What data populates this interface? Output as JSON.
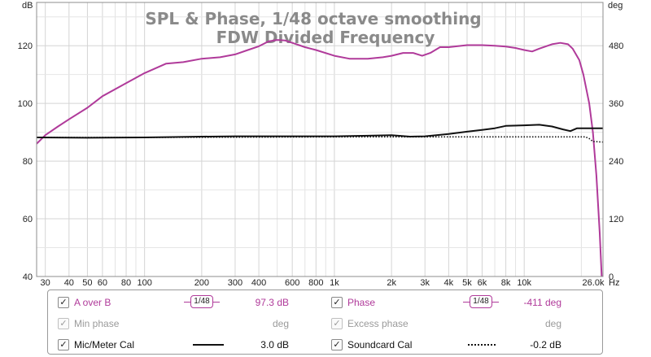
{
  "chart_data": {
    "type": "line",
    "title": "SPL & Phase, 1/48 octave smoothing",
    "subtitle": "FDW Divided Frequency",
    "ylabel_left": "dB",
    "ylabel_right": "deg",
    "xunit": "Hz",
    "xscale": "log",
    "xlim": [
      27,
      26000
    ],
    "ylim_left": [
      40,
      135
    ],
    "ylim_right": [
      0,
      570
    ],
    "y_ticks_left": [
      "40",
      "60",
      "80",
      "100",
      "120"
    ],
    "y_ticks_right": [
      "0",
      "120",
      "240",
      "360",
      "480"
    ],
    "x_ticks": [
      {
        "v": 30,
        "label": "30"
      },
      {
        "v": 40,
        "label": "40"
      },
      {
        "v": 50,
        "label": "50"
      },
      {
        "v": 60,
        "label": "60"
      },
      {
        "v": 80,
        "label": "80"
      },
      {
        "v": 100,
        "label": "100"
      },
      {
        "v": 200,
        "label": "200"
      },
      {
        "v": 300,
        "label": "300"
      },
      {
        "v": 400,
        "label": "400"
      },
      {
        "v": 600,
        "label": "600"
      },
      {
        "v": 800,
        "label": "800"
      },
      {
        "v": 1000,
        "label": "1k"
      },
      {
        "v": 2000,
        "label": "2k"
      },
      {
        "v": 3000,
        "label": "3k"
      },
      {
        "v": 4000,
        "label": "4k"
      },
      {
        "v": 5000,
        "label": "5k"
      },
      {
        "v": 6000,
        "label": "6k"
      },
      {
        "v": 8000,
        "label": "8k"
      },
      {
        "v": 10000,
        "label": "10k"
      },
      {
        "v": 26000,
        "label": "26.0k"
      }
    ],
    "grid": true,
    "series": [
      {
        "name": "A over B",
        "axis": "left",
        "color": "#b03a9a",
        "style": "solid",
        "points": [
          [
            27,
            86
          ],
          [
            30,
            89
          ],
          [
            35,
            92
          ],
          [
            40,
            94.5
          ],
          [
            50,
            98.5
          ],
          [
            60,
            102.5
          ],
          [
            80,
            107
          ],
          [
            100,
            110.5
          ],
          [
            130,
            113.8
          ],
          [
            160,
            114.3
          ],
          [
            200,
            115.5
          ],
          [
            250,
            116
          ],
          [
            300,
            117
          ],
          [
            350,
            118.5
          ],
          [
            400,
            119.8
          ],
          [
            450,
            121.5
          ],
          [
            500,
            122
          ],
          [
            550,
            121.8
          ],
          [
            600,
            121
          ],
          [
            700,
            119.5
          ],
          [
            800,
            118.5
          ],
          [
            1000,
            116.5
          ],
          [
            1200,
            115.5
          ],
          [
            1500,
            115.5
          ],
          [
            1800,
            116
          ],
          [
            2000,
            116.5
          ],
          [
            2300,
            117.5
          ],
          [
            2600,
            117.5
          ],
          [
            2900,
            116.5
          ],
          [
            3200,
            117.5
          ],
          [
            3600,
            119.5
          ],
          [
            4000,
            119.5
          ],
          [
            5000,
            120.2
          ],
          [
            6000,
            120.2
          ],
          [
            7000,
            120
          ],
          [
            8000,
            119.7
          ],
          [
            9000,
            119.2
          ],
          [
            10000,
            118.5
          ],
          [
            11000,
            118
          ],
          [
            12000,
            119
          ],
          [
            14000,
            120.5
          ],
          [
            15500,
            121
          ],
          [
            17000,
            120.5
          ],
          [
            18000,
            119
          ],
          [
            19500,
            115
          ],
          [
            20500,
            110
          ],
          [
            22000,
            100
          ],
          [
            23000,
            90
          ],
          [
            24000,
            75
          ],
          [
            25000,
            55
          ],
          [
            25600,
            40
          ]
        ]
      },
      {
        "name": "Phase",
        "axis": "right",
        "color": "#b03a9a",
        "style": "solid",
        "points": []
      },
      {
        "name": "Mic/Meter Cal",
        "axis": "left",
        "color": "#111111",
        "style": "solid",
        "points": [
          [
            27,
            88.2
          ],
          [
            50,
            88.1
          ],
          [
            100,
            88.2
          ],
          [
            200,
            88.5
          ],
          [
            300,
            88.6
          ],
          [
            500,
            88.6
          ],
          [
            1000,
            88.6
          ],
          [
            1500,
            88.8
          ],
          [
            2000,
            89
          ],
          [
            2500,
            88.5
          ],
          [
            3000,
            88.6
          ],
          [
            4000,
            89.4
          ],
          [
            5000,
            90.2
          ],
          [
            6000,
            90.8
          ],
          [
            7000,
            91.4
          ],
          [
            8000,
            92.2
          ],
          [
            10000,
            92.4
          ],
          [
            12000,
            92.6
          ],
          [
            14000,
            92
          ],
          [
            16000,
            91
          ],
          [
            17500,
            90.4
          ],
          [
            19000,
            91.4
          ],
          [
            26000,
            91.4
          ]
        ]
      },
      {
        "name": "Soundcard Cal",
        "axis": "left",
        "color": "#111111",
        "style": "dotted",
        "points": [
          [
            27,
            88.2
          ],
          [
            100,
            88.2
          ],
          [
            1000,
            88.4
          ],
          [
            5000,
            88.4
          ],
          [
            10000,
            88.4
          ],
          [
            17000,
            88.4
          ],
          [
            21000,
            88.4
          ],
          [
            22000,
            87.8
          ],
          [
            23000,
            86.8
          ],
          [
            26000,
            86.6
          ]
        ]
      }
    ]
  },
  "legend": {
    "rows": [
      [
        {
          "name": "A over B",
          "checked": true,
          "style": "magenta",
          "smoothing": "1/48",
          "value": "97.3 dB"
        },
        {
          "name": "Phase",
          "checked": true,
          "style": "magenta",
          "smoothing": "1/48",
          "value": "-411 deg"
        }
      ],
      [
        {
          "name": "Min phase",
          "checked": true,
          "style": "dim",
          "value": "deg"
        },
        {
          "name": "Excess phase",
          "checked": true,
          "style": "dim",
          "value": "deg"
        }
      ],
      [
        {
          "name": "Mic/Meter Cal",
          "checked": true,
          "style": "black",
          "swatch": "solid",
          "value": "3.0 dB"
        },
        {
          "name": "Soundcard Cal",
          "checked": true,
          "style": "black",
          "swatch": "dotted",
          "value": "-0.2 dB"
        }
      ]
    ],
    "check_glyph": "✓",
    "colors": {
      "magenta": "#b03a9a",
      "dim": "#9a9a9a",
      "black": "#111111",
      "grid": "#d4d4d4",
      "frame": "#8c8c8c"
    }
  }
}
